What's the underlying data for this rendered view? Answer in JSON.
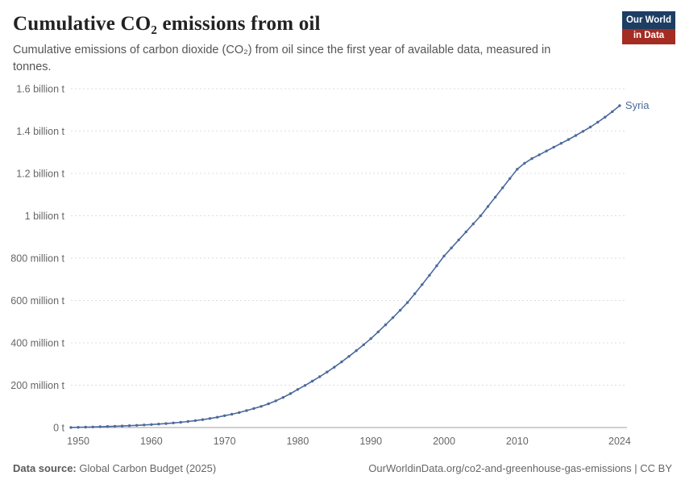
{
  "header": {
    "title": "Cumulative CO₂ emissions from oil",
    "subtitle": "Cumulative emissions of carbon dioxide (CO₂) from oil since the first year of available data, measured in tonnes.",
    "logo": {
      "line1": "Our World",
      "line2": "in Data"
    }
  },
  "footer": {
    "source_label": "Data source:",
    "source_value": " Global Carbon Budget (2025)",
    "link": "OurWorldinData.org/co2-and-greenhouse-gas-emissions | CC BY"
  },
  "colors": {
    "line": "#4c6a9c",
    "grid": "#dddddd",
    "zero_axis": "#a0a0a0",
    "axis_text": "#666666",
    "logo_navy": "#1d3d63",
    "logo_red": "#a42c23"
  },
  "chart_data": {
    "type": "line",
    "title": "Cumulative CO₂ emissions from oil",
    "series_label": "Syria",
    "unit": "tonnes (millions)",
    "grid": "horizontal-dashed",
    "legend_position": "end-of-line",
    "xlim": [
      1949,
      2025
    ],
    "ylim": [
      0,
      1600
    ],
    "x_ticks": [
      1950,
      1960,
      1970,
      1980,
      1990,
      2000,
      2010,
      2024
    ],
    "y_ticks": [
      {
        "value": 0,
        "label": "0 t"
      },
      {
        "value": 200,
        "label": "200 million t"
      },
      {
        "value": 400,
        "label": "400 million t"
      },
      {
        "value": 600,
        "label": "600 million t"
      },
      {
        "value": 800,
        "label": "800 million t"
      },
      {
        "value": 1000,
        "label": "1 billion t"
      },
      {
        "value": 1200,
        "label": "1.2 billion t"
      },
      {
        "value": 1400,
        "label": "1.4 billion t"
      },
      {
        "value": 1600,
        "label": "1.6 billion t"
      }
    ],
    "x": [
      1949,
      1950,
      1951,
      1952,
      1953,
      1954,
      1955,
      1956,
      1957,
      1958,
      1959,
      1960,
      1961,
      1962,
      1963,
      1964,
      1965,
      1966,
      1967,
      1968,
      1969,
      1970,
      1971,
      1972,
      1973,
      1974,
      1975,
      1976,
      1977,
      1978,
      1979,
      1980,
      1981,
      1982,
      1983,
      1984,
      1985,
      1986,
      1987,
      1988,
      1989,
      1990,
      1991,
      1992,
      1993,
      1994,
      1995,
      1996,
      1997,
      1998,
      1999,
      2000,
      2001,
      2002,
      2003,
      2004,
      2005,
      2006,
      2007,
      2008,
      2009,
      2010,
      2011,
      2012,
      2013,
      2014,
      2015,
      2016,
      2017,
      2018,
      2019,
      2020,
      2021,
      2022,
      2023,
      2024
    ],
    "values_million_t": [
      0.4,
      1.1,
      1.9,
      2.8,
      3.8,
      4.9,
      6.1,
      7.4,
      8.8,
      10.4,
      12.1,
      14,
      16.2,
      18.7,
      21.6,
      24.9,
      28.6,
      32.8,
      37.5,
      42.8,
      48.9,
      56,
      63,
      71,
      80,
      90,
      100,
      112,
      126,
      142,
      160,
      180,
      199,
      219,
      240,
      262,
      285,
      310,
      336,
      363,
      391,
      420,
      452,
      485,
      519,
      554,
      590,
      632,
      675,
      719,
      764,
      810,
      848,
      886,
      924,
      962,
      1000,
      1044,
      1088,
      1132,
      1176,
      1220,
      1248,
      1270,
      1288,
      1306,
      1324,
      1342,
      1360,
      1379,
      1399,
      1419,
      1442,
      1466,
      1492,
      1520
    ]
  }
}
